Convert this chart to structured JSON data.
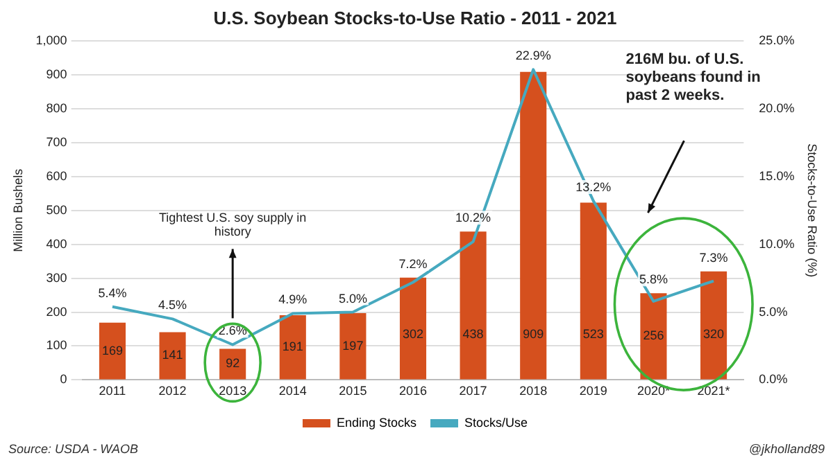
{
  "chart_data": {
    "type": "bar",
    "title": "U.S. Soybean Stocks-to-Use Ratio - 2011 - 2021",
    "ylabel": "Million Bushels",
    "y2label": "Stocks-to-Use Ratio (%)",
    "categories": [
      "2011",
      "2012",
      "2013",
      "2014",
      "2015",
      "2016",
      "2017",
      "2018",
      "2019",
      "2020*",
      "2021*"
    ],
    "series": [
      {
        "name": "Ending Stocks",
        "color": "#d5501e",
        "values": [
          169,
          141,
          92,
          191,
          197,
          302,
          438,
          909,
          523,
          256,
          320
        ],
        "value_labels": [
          "169",
          "141",
          "92",
          "191",
          "197",
          "302",
          "438",
          "909",
          "523",
          "256",
          "320"
        ]
      },
      {
        "name": "Stocks/Use",
        "type": "line",
        "axis": "y2",
        "color": "#46a9bf",
        "values": [
          5.4,
          4.5,
          2.6,
          4.9,
          5.0,
          7.2,
          10.2,
          22.9,
          13.2,
          5.8,
          7.3
        ],
        "value_labels": [
          "5.4%",
          "4.5%",
          "2.6%",
          "4.9%",
          "5.0%",
          "7.2%",
          "10.2%",
          "22.9%",
          "13.2%",
          "5.8%",
          "7.3%"
        ]
      }
    ],
    "ylim": [
      0,
      1000
    ],
    "yticks": [
      0,
      100,
      200,
      300,
      400,
      500,
      600,
      700,
      800,
      900,
      {
        "value": 1000,
        "label": "1,000"
      }
    ],
    "y2lim": [
      0,
      25
    ],
    "y2ticks": [
      {
        "value": 0,
        "label": "0.0%"
      },
      {
        "value": 5,
        "label": "5.0%"
      },
      {
        "value": 10,
        "label": "10.0%"
      },
      {
        "value": 15,
        "label": "15.0%"
      },
      {
        "value": 20,
        "label": "20.0%"
      },
      {
        "value": 25,
        "label": "25.0%"
      }
    ],
    "grid": "y",
    "legend": "bottom",
    "marker": "none",
    "line_style": "solid",
    "annotations": [
      "Tightest U.S. soy supply in history",
      "216M bu. of U.S. soybeans found in past 2 weeks.",
      "Source: USDA - WAOB",
      "@jkholland89"
    ]
  }
}
